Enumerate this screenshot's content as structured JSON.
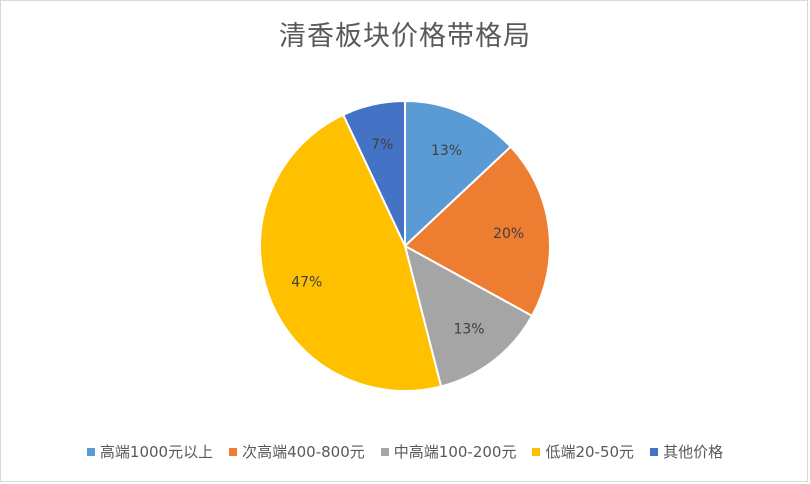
{
  "chart_data": {
    "type": "pie",
    "title": "清香板块价格带格局",
    "categories": [
      "高端1000元以上",
      "次高端400-800元",
      "中高端100-200元",
      "低端20-50元",
      "其他价格"
    ],
    "values": [
      13,
      20,
      13,
      47,
      7
    ],
    "labels": [
      "13%",
      "20%",
      "13%",
      "47%",
      "7%"
    ],
    "colors": [
      "#5b9bd5",
      "#ed7d31",
      "#a5a5a5",
      "#ffc000",
      "#4472c4"
    ],
    "legend_position": "bottom"
  }
}
